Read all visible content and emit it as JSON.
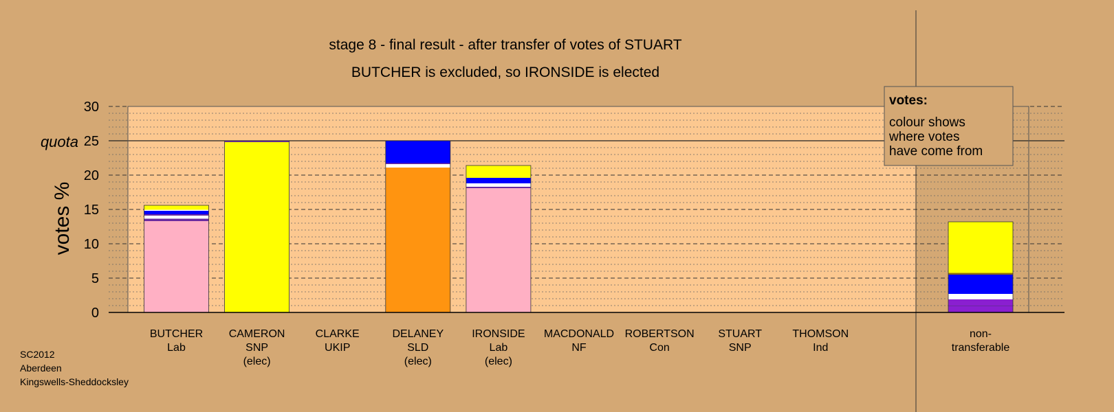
{
  "chart_data": {
    "type": "bar",
    "title": "stage 8 - final result - after transfer of votes of STUART",
    "subtitle": "BUTCHER is excluded, so IRONSIDE is elected",
    "ylabel": "votes %",
    "ylim": [
      0,
      30
    ],
    "yticks": [
      0,
      5,
      10,
      15,
      20,
      25,
      30
    ],
    "quota": 25,
    "quota_label": "quota",
    "grid": true,
    "candidates": [
      {
        "name": "BUTCHER",
        "party": "Lab",
        "status": "",
        "segments": [
          {
            "color": "#ffb0c4",
            "value": 13.3
          },
          {
            "color": "#6a2aa0",
            "value": 0.35
          },
          {
            "color": "#ffffff",
            "value": 0.45
          },
          {
            "color": "#6a2aa0",
            "value": 0.2
          },
          {
            "color": "#0000ff",
            "value": 0.5
          },
          {
            "color": "#ffffff",
            "value": 0.15
          },
          {
            "color": "#ffff00",
            "value": 0.65
          }
        ]
      },
      {
        "name": "CAMERON",
        "party": "SNP",
        "status": "(elec)",
        "segments": [
          {
            "color": "#ffff00",
            "value": 24.8
          },
          {
            "color": "#6a2aa0",
            "value": 0.2
          }
        ]
      },
      {
        "name": "CLARKE",
        "party": "UKIP",
        "status": "",
        "segments": []
      },
      {
        "name": "DELANEY",
        "party": "SLD",
        "status": "(elec)",
        "segments": [
          {
            "color": "#ff9410",
            "value": 21.1
          },
          {
            "color": "#ffffff",
            "value": 0.5
          },
          {
            "color": "#6a2aa0",
            "value": 0.15
          },
          {
            "color": "#0000ff",
            "value": 3.25
          }
        ]
      },
      {
        "name": "IRONSIDE",
        "party": "Lab",
        "status": "(elec)",
        "segments": [
          {
            "color": "#ffb0c4",
            "value": 18.1
          },
          {
            "color": "#6a2aa0",
            "value": 0.2
          },
          {
            "color": "#ffffff",
            "value": 0.5
          },
          {
            "color": "#0000ff",
            "value": 0.8
          },
          {
            "color": "#ffff00",
            "value": 1.8
          }
        ]
      },
      {
        "name": "MACDONALD",
        "party": "NF",
        "status": "",
        "segments": []
      },
      {
        "name": "ROBERTSON",
        "party": "Con",
        "status": "",
        "segments": []
      },
      {
        "name": "STUART",
        "party": "SNP",
        "status": "",
        "segments": []
      },
      {
        "name": "THOMSON",
        "party": "Ind",
        "status": "",
        "segments": []
      }
    ],
    "nontransferable": {
      "label_line1": "non-",
      "label_line2": "transferable",
      "segments": [
        {
          "color": "#8a1fd0",
          "value": 0.9
        },
        {
          "color": "#6a2aa0",
          "value": 0.1
        },
        {
          "color": "#8a1fd0",
          "value": 0.9
        },
        {
          "color": "#ffffff",
          "value": 0.8
        },
        {
          "color": "#0000ff",
          "value": 2.8
        },
        {
          "color": "#8a6a10",
          "value": 0.25
        },
        {
          "color": "#ffff00",
          "value": 7.45
        }
      ]
    }
  },
  "legend": {
    "heading": "votes:",
    "lines": [
      "colour shows",
      "where votes",
      "have come from"
    ]
  },
  "footer": [
    "SC2012",
    "Aberdeen",
    "Kingswells-Sheddocksley"
  ],
  "colors": {
    "background": "#d4a874",
    "plot_area": "#fcc890",
    "grid": "#444444"
  }
}
